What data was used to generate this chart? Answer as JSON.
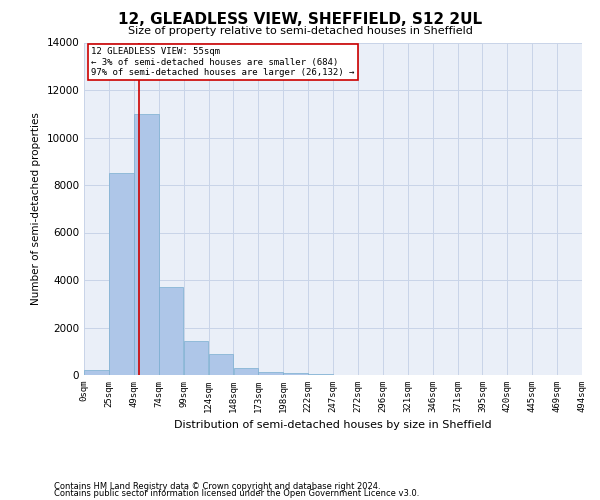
{
  "title": "12, GLEADLESS VIEW, SHEFFIELD, S12 2UL",
  "subtitle": "Size of property relative to semi-detached houses in Sheffield",
  "xlabel": "Distribution of semi-detached houses by size in Sheffield",
  "ylabel": "Number of semi-detached properties",
  "footer_line1": "Contains HM Land Registry data © Crown copyright and database right 2024.",
  "footer_line2": "Contains public sector information licensed under the Open Government Licence v3.0.",
  "annotation_line1": "12 GLEADLESS VIEW: 55sqm",
  "annotation_line2": "← 3% of semi-detached houses are smaller (684)",
  "annotation_line3": "97% of semi-detached houses are larger (26,132) →",
  "property_size_sqm": 55,
  "bin_edges": [
    0,
    25,
    50,
    75,
    100,
    125,
    150,
    175,
    200,
    225,
    250,
    275,
    300,
    325,
    350,
    375,
    400,
    425,
    450,
    475,
    500
  ],
  "bin_labels": [
    "0sqm",
    "25sqm",
    "49sqm",
    "74sqm",
    "99sqm",
    "124sqm",
    "148sqm",
    "173sqm",
    "198sqm",
    "222sqm",
    "247sqm",
    "272sqm",
    "296sqm",
    "321sqm",
    "346sqm",
    "371sqm",
    "395sqm",
    "420sqm",
    "445sqm",
    "469sqm",
    "494sqm"
  ],
  "bar_heights": [
    200,
    8500,
    11000,
    3700,
    1450,
    900,
    300,
    130,
    70,
    30,
    10,
    5,
    2,
    1,
    0,
    0,
    0,
    0,
    0,
    0
  ],
  "bar_color": "#aec6e8",
  "bar_edge_color": "#7aaed0",
  "red_line_color": "#cc0000",
  "annotation_box_color": "#ffffff",
  "annotation_box_edge": "#cc0000",
  "grid_color": "#c8d4e8",
  "background_color": "#eaeff8",
  "ylim": [
    0,
    14000
  ],
  "yticks": [
    0,
    2000,
    4000,
    6000,
    8000,
    10000,
    12000,
    14000
  ]
}
